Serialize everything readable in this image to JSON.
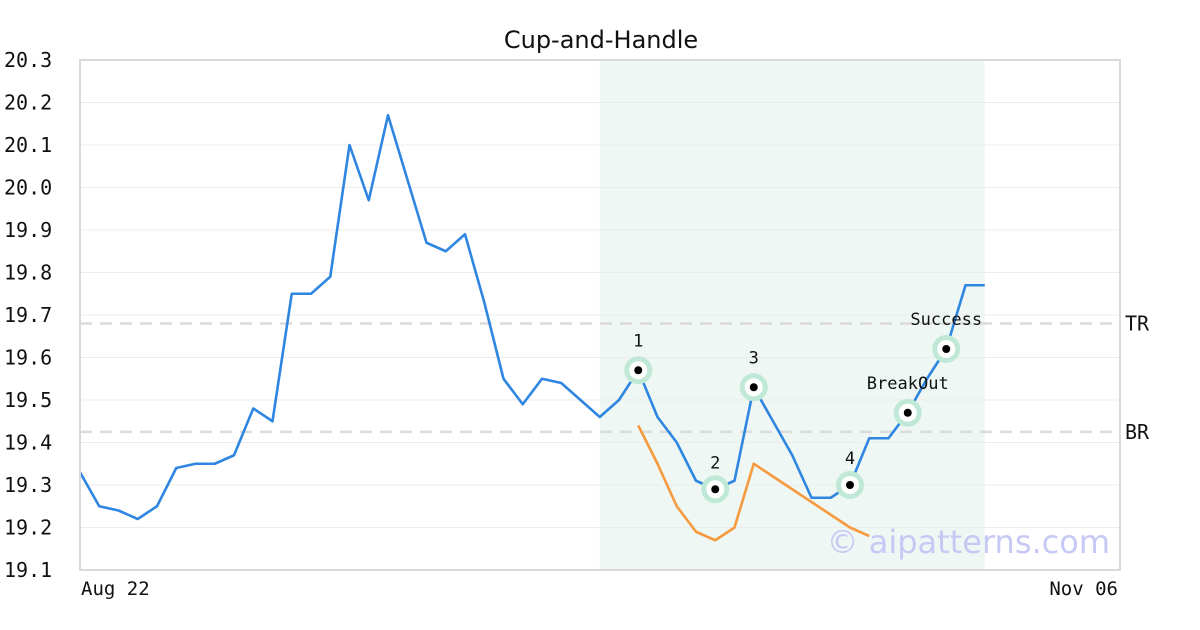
{
  "chart_data": {
    "type": "line",
    "title": "Cup-and-Handle",
    "ylim": [
      19.1,
      20.3
    ],
    "y_ticks": [
      "20.3",
      "20.2",
      "20.1",
      "20.0",
      "19.9",
      "19.8",
      "19.7",
      "19.6",
      "19.5",
      "19.4",
      "19.3",
      "19.2",
      "19.1"
    ],
    "x_labels": {
      "start": "Aug 22",
      "end": "Nov 06"
    },
    "grid": true,
    "series": [
      {
        "color": "#2f86e0",
        "values": [
          19.33,
          19.25,
          19.24,
          19.22,
          19.25,
          19.34,
          19.35,
          19.35,
          19.37,
          19.48,
          19.45,
          19.75,
          19.75,
          19.79,
          20.1,
          19.97,
          20.17,
          20.02,
          19.87,
          19.85,
          19.89,
          19.73,
          19.55,
          19.49,
          19.55,
          19.54,
          19.5,
          19.46,
          19.5,
          19.57,
          19.46,
          19.4,
          19.31,
          19.29,
          19.31,
          19.53,
          19.45,
          19.37,
          19.27,
          19.27,
          19.3,
          19.41,
          19.41,
          19.47,
          19.55,
          19.62,
          19.77,
          19.77
        ]
      },
      {
        "color": "#f59a3f",
        "start_index": 29,
        "values": [
          19.44,
          19.35,
          19.25,
          19.19,
          19.17,
          19.2,
          19.35,
          19.32,
          19.29,
          19.26,
          19.23,
          19.2,
          19.18
        ]
      }
    ],
    "levels": [
      {
        "label": "TR",
        "value": 19.68
      },
      {
        "label": "BR",
        "value": 19.425
      }
    ],
    "pattern_region": {
      "start_index": 27,
      "end_index": 47,
      "color": "#eef7f3"
    },
    "points": [
      {
        "label": "1",
        "index": 29,
        "value": 19.57
      },
      {
        "label": "2",
        "index": 33,
        "value": 19.29
      },
      {
        "label": "3",
        "index": 35,
        "value": 19.53
      },
      {
        "label": "4",
        "index": 40,
        "value": 19.3
      },
      {
        "label": "BreakOut",
        "index": 43,
        "value": 19.47
      },
      {
        "label": "Success",
        "index": 45,
        "value": 19.62
      }
    ],
    "marker_color": "#bfe9d6"
  },
  "watermark": "© aipatterns.com"
}
